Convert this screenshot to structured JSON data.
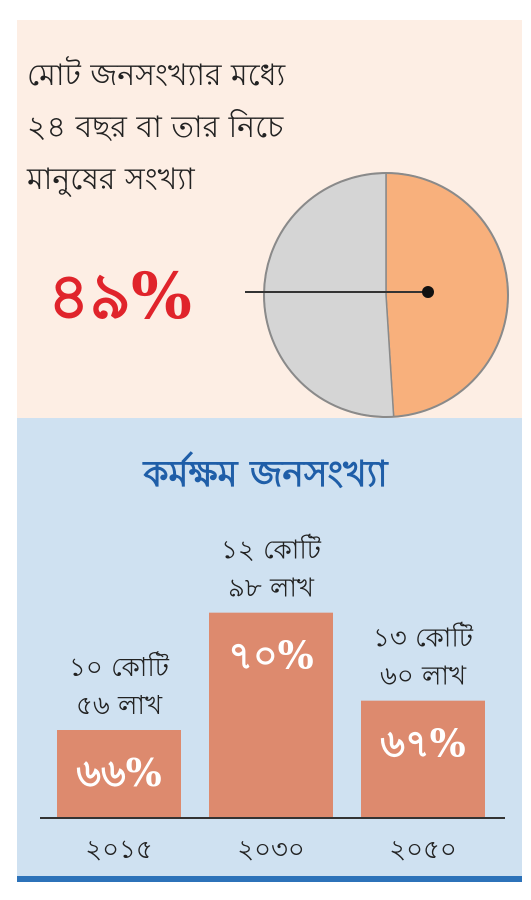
{
  "chart_data": [
    {
      "type": "pie",
      "title": "মোট জনসংখ্যার মধ্যে ২৪ বছর বা তার নিচে মানুষের সংখ্যা",
      "title_lines": [
        "মোট জনসংখ্যার মধ্যে",
        "২৪ বছর বা তার নিচে",
        "মানুষের সংখ্যা"
      ],
      "highlight_label": "৪৯%",
      "slices": [
        {
          "value": 49,
          "color": "#f8b07c"
        },
        {
          "value": 51,
          "color": "#d5d5d5"
        }
      ]
    },
    {
      "type": "bar",
      "title": "কর্মক্ষম জনসংখ্যা",
      "categories": [
        "২০১৫",
        "২০৩০",
        "২০৫০"
      ],
      "values": [
        66,
        70,
        67
      ],
      "value_labels": [
        "৬৬%",
        "৭০%",
        "৬৭%"
      ],
      "annotations": [
        [
          "১০ কোটি",
          "৫৬ লাখ"
        ],
        [
          "১২ কোটি",
          "৯৮ লাখ"
        ],
        [
          "১৩ কোটি",
          "৬০ লাখ"
        ]
      ],
      "ylim": [
        63,
        70.5
      ],
      "bar_color": "#dd8a6e",
      "label_color": "#ffffff"
    }
  ],
  "colors": {
    "top_background": "#fdeee4",
    "bottom_background": "#cfe1f1",
    "accent_red": "#e0242b",
    "title_blue": "#1f5ea8",
    "rule_blue": "#2c72b9"
  }
}
